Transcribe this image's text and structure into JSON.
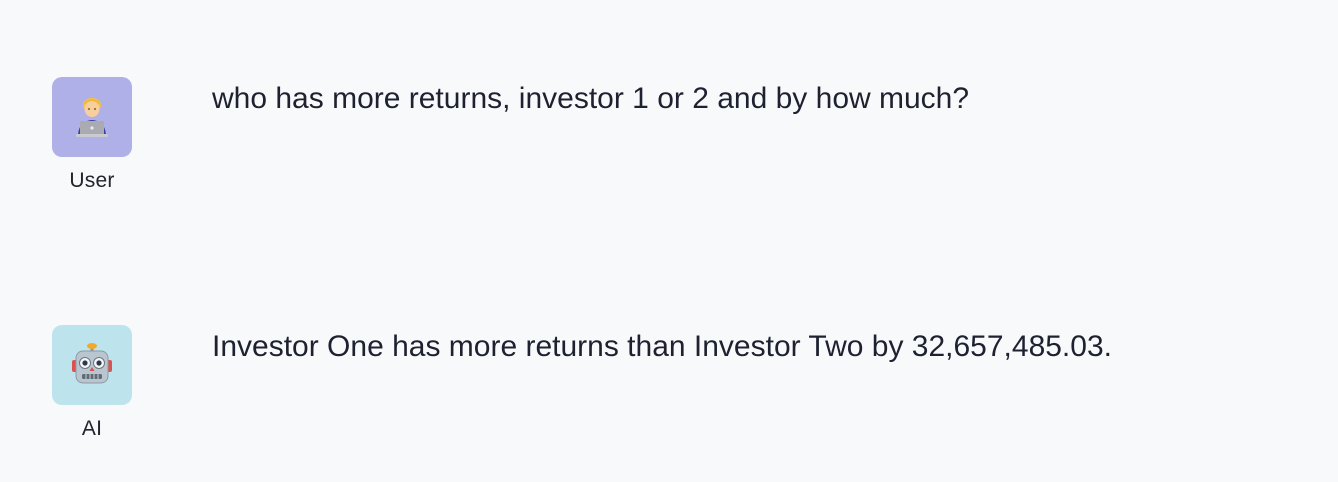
{
  "conversation": {
    "messages": [
      {
        "role_label": "User",
        "avatar_icon": "person-with-laptop-icon",
        "avatar_color": "#b0b0e8",
        "text": "who has more returns, investor 1 or 2 and by how much?"
      },
      {
        "role_label": "AI",
        "avatar_icon": "robot-face-icon",
        "avatar_color": "#bde4ec",
        "text": "Investor One has more returns than Investor Two by 32,657,485.03."
      }
    ]
  }
}
